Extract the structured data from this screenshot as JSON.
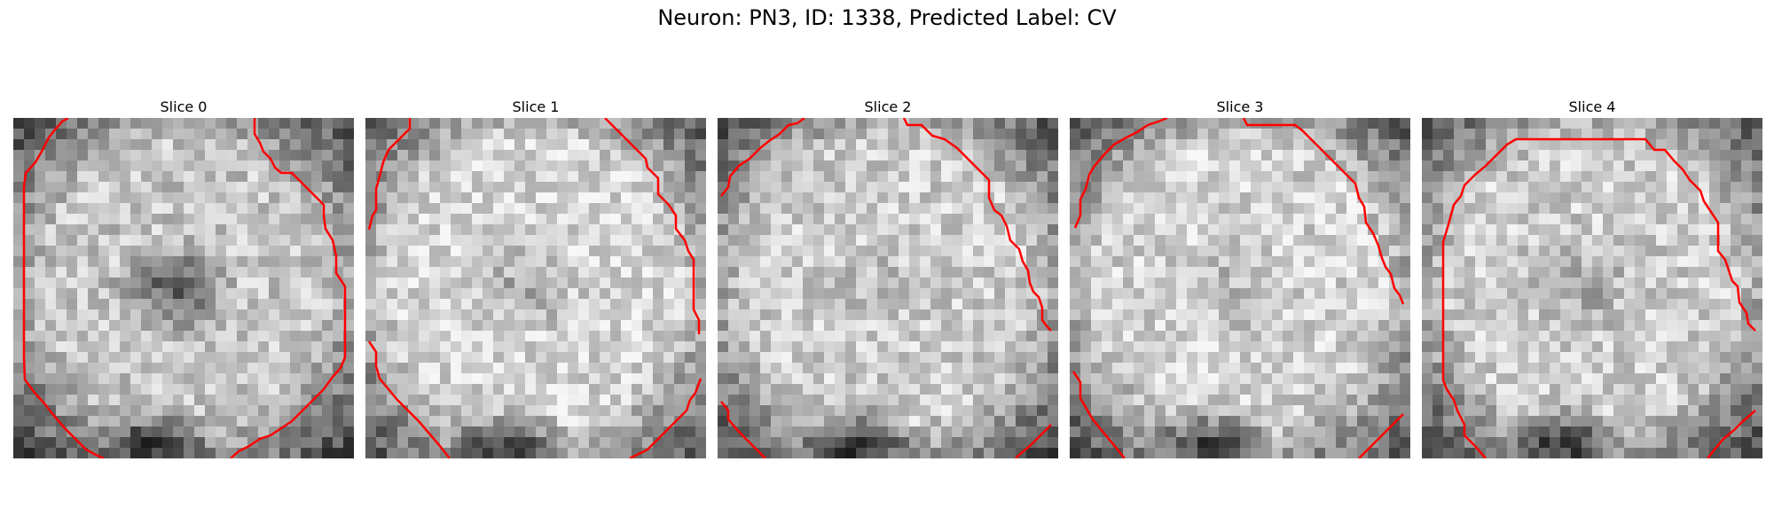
{
  "title": "Neuron: PN3, ID: 1338, Predicted Label: CV",
  "contour_color": "#ff0000",
  "grid_size": 32,
  "slices": [
    {
      "label": "Slice 0",
      "seed": 11,
      "dark_center": 1.0,
      "bright": 0.55
    },
    {
      "label": "Slice 1",
      "seed": 23,
      "dark_center": 0.45,
      "bright": 0.62
    },
    {
      "label": "Slice 2",
      "seed": 37,
      "dark_center": 0.15,
      "bright": 0.58
    },
    {
      "label": "Slice 3",
      "seed": 49,
      "dark_center": 0.25,
      "bright": 0.6
    },
    {
      "label": "Slice 4",
      "seed": 61,
      "dark_center": 0.35,
      "bright": 0.58
    }
  ]
}
